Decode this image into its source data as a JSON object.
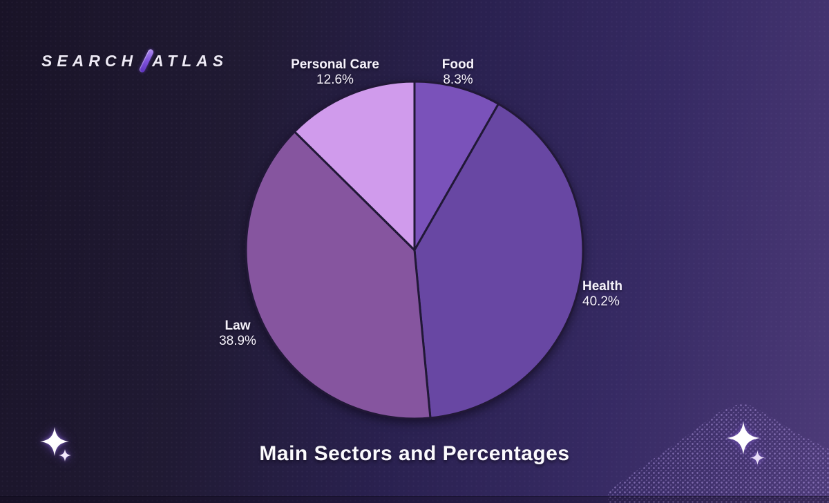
{
  "logo": {
    "part1": "SEARCH",
    "part2": "ATLAS",
    "pen_color": "#8257dd"
  },
  "title": "Main Sectors and Percentages",
  "chart_data": {
    "type": "pie",
    "title": "Main Sectors and Percentages",
    "direction": "clockwise",
    "start_angle_deg": 0,
    "legend_position": "none",
    "labels_outside": true,
    "stroke_color": "#211837",
    "slices": [
      {
        "label": "Food",
        "value": 8.3,
        "percent_label": "8.3%",
        "color": "#7a52ba"
      },
      {
        "label": "Health",
        "value": 40.2,
        "percent_label": "40.2%",
        "color": "#6847a3"
      },
      {
        "label": "Law",
        "value": 38.9,
        "percent_label": "38.9%",
        "color": "#86559f"
      },
      {
        "label": "Personal Care",
        "value": 12.6,
        "percent_label": "12.6%",
        "color": "#d09bec"
      }
    ]
  },
  "decor": {
    "sparkle_color": "#ffffff",
    "background_top_left": "#191327",
    "background_bottom_right": "#4d3b79"
  }
}
